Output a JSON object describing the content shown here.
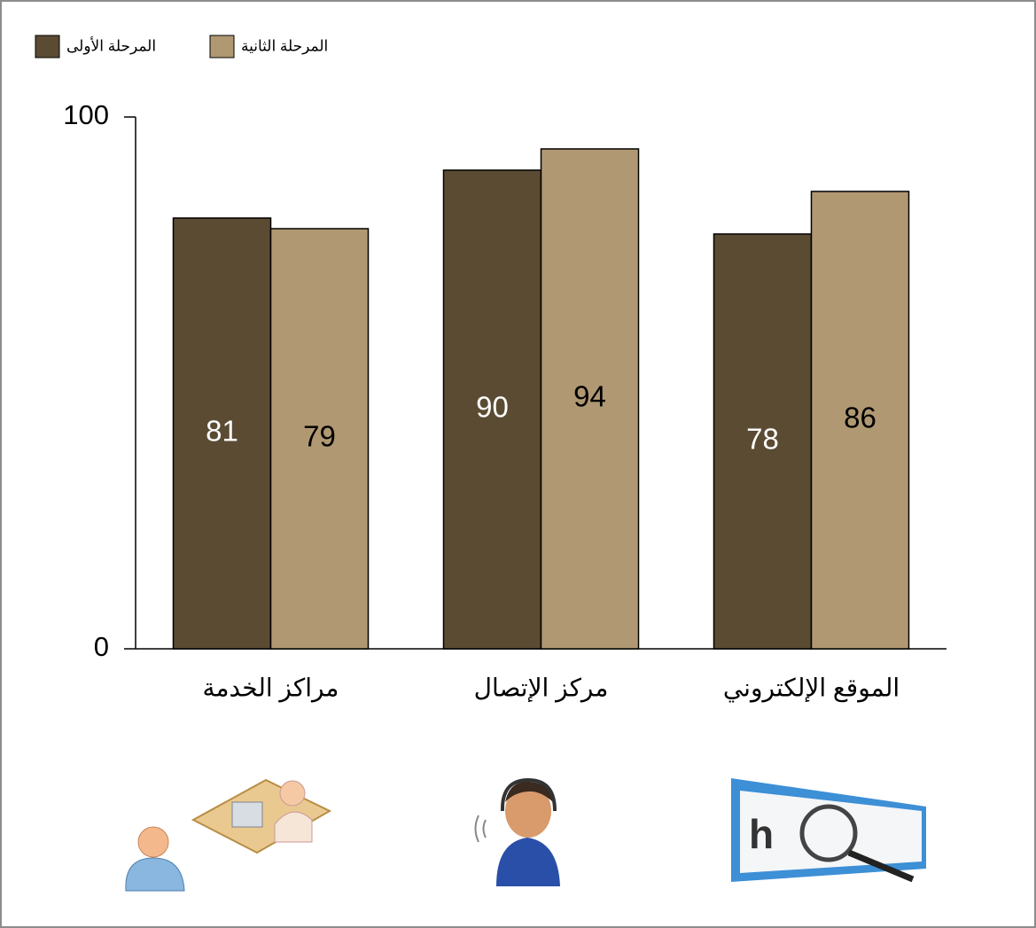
{
  "chart_data": {
    "type": "bar",
    "categories": [
      "مراكز الخدمة",
      "مركز الإتصال",
      "الموقع الإلكتروني"
    ],
    "series": [
      {
        "name": "المرحلة الأولى",
        "color": "#5b4b33",
        "values": [
          81,
          90,
          78
        ]
      },
      {
        "name": "المرحلة الثانية",
        "color": "#b09872",
        "values": [
          79,
          94,
          86
        ]
      }
    ],
    "ylim": [
      0,
      100
    ],
    "yticks": [
      0,
      100
    ],
    "grid": false,
    "legend": "top-left"
  }
}
